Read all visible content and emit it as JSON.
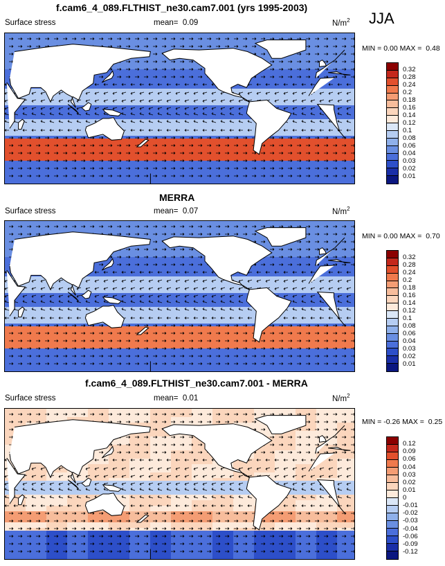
{
  "season": "JJA",
  "panels": [
    {
      "title": "f.cam6_4_089.FLTHIST_ne30.cam7.001 (yrs 1995-2003)",
      "variable": "Surface stress",
      "mean_label": "mean=",
      "mean": "0.09",
      "units": "N/m",
      "units_exp": "2",
      "min_label": "MIN =",
      "min": "0.00",
      "max_label": "MAX =",
      "max": "0.48",
      "levels": [
        "0.32",
        "0.28",
        "0.24",
        "0.2",
        "0.18",
        "0.16",
        "0.14",
        "0.12",
        "0.1",
        "0.08",
        "0.06",
        "0.04",
        "0.03",
        "0.02",
        "0.01"
      ],
      "colors": [
        "#8b0000",
        "#c4281c",
        "#e2502d",
        "#f07a4d",
        "#f49d74",
        "#f7bd9c",
        "#fbd6bd",
        "#fdeadb",
        "#dbe7f7",
        "#b6cdf2",
        "#8fb0ea",
        "#6a8fe2",
        "#4b6fdb",
        "#2d4fc9",
        "#1a2fa8",
        "#0b1780"
      ]
    },
    {
      "title": "MERRA",
      "variable": "Surface stress",
      "mean_label": "mean=",
      "mean": "0.07",
      "units": "N/m",
      "units_exp": "2",
      "min_label": "MIN =",
      "min": "0.00",
      "max_label": "MAX =",
      "max": "0.70",
      "levels": [
        "0.32",
        "0.28",
        "0.24",
        "0.2",
        "0.18",
        "0.16",
        "0.14",
        "0.12",
        "0.1",
        "0.08",
        "0.06",
        "0.04",
        "0.03",
        "0.02",
        "0.01"
      ],
      "colors": [
        "#8b0000",
        "#c4281c",
        "#e2502d",
        "#f07a4d",
        "#f49d74",
        "#f7bd9c",
        "#fbd6bd",
        "#fdeadb",
        "#dbe7f7",
        "#b6cdf2",
        "#8fb0ea",
        "#6a8fe2",
        "#4b6fdb",
        "#2d4fc9",
        "#1a2fa8",
        "#0b1780"
      ]
    },
    {
      "title": "f.cam6_4_089.FLTHIST_ne30.cam7.001 - MERRA",
      "variable": "Surface stress",
      "mean_label": "mean=",
      "mean": "0.01",
      "units": "N/m",
      "units_exp": "2",
      "min_label": "MIN =",
      "min": "-0.26",
      "max_label": "MAX =",
      "max": "0.25",
      "levels": [
        "0.12",
        "0.09",
        "0.06",
        "0.04",
        "0.03",
        "0.02",
        "0.01",
        "0",
        "-0.01",
        "-0.02",
        "-0.03",
        "-0.04",
        "-0.06",
        "-0.09",
        "-0.12"
      ],
      "colors": [
        "#8b0000",
        "#c4281c",
        "#e2502d",
        "#f07a4d",
        "#f49d74",
        "#f7bd9c",
        "#fbd6bd",
        "#fdeadb",
        "#dbe7f7",
        "#b6cdf2",
        "#8fb0ea",
        "#6a8fe2",
        "#4b6fdb",
        "#2d4fc9",
        "#1a2fa8",
        "#0b1780"
      ]
    }
  ]
}
